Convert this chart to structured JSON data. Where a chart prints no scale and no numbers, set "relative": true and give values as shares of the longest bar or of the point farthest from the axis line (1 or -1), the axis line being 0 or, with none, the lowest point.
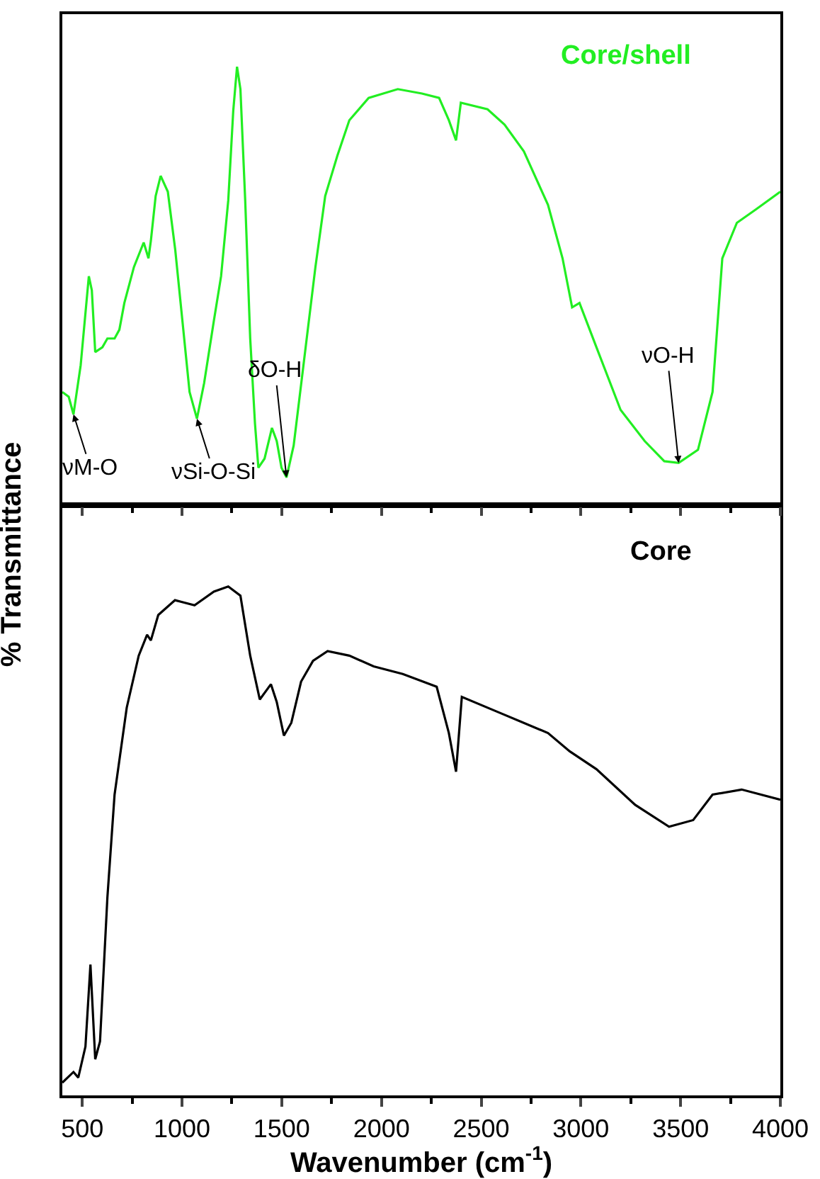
{
  "chart_data": [
    {
      "type": "line",
      "relative": true,
      "xlim": [
        400,
        4000
      ],
      "tick_labels": false,
      "ylabel": "% Transmittance",
      "xticks": [
        500,
        {
          "value": 750,
          "label": null
        },
        1000,
        {
          "value": 1250,
          "label": null
        },
        1500,
        {
          "value": 1750,
          "label": null
        },
        2000,
        {
          "value": 2250,
          "label": null
        },
        2500,
        {
          "value": 2750,
          "label": null
        },
        3000,
        {
          "value": 3250,
          "label": null
        },
        3500,
        {
          "value": 3750,
          "label": null
        },
        4000
      ],
      "series": [
        {
          "name": "Core/shell",
          "color": "#22ee22",
          "x": [
            400,
            432,
            456,
            492,
            533,
            548,
            565,
            601,
            626,
            662,
            686,
            711,
            759,
            808,
            832,
            844,
            868,
            893,
            929,
            966,
            1002,
            1038,
            1075,
            1111,
            1160,
            1196,
            1232,
            1257,
            1276,
            1293,
            1317,
            1342,
            1366,
            1383,
            1414,
            1451,
            1475,
            1499,
            1524,
            1560,
            1609,
            1669,
            1718,
            1779,
            1839,
            1936,
            2082,
            2203,
            2289,
            2338,
            2374,
            2398,
            2532,
            2617,
            2714,
            2835,
            2908,
            2956,
            2993,
            3078,
            3199,
            3320,
            3418,
            3490,
            3587,
            3660,
            3709,
            3782,
            3879,
            4000
          ],
          "values": [
            0.258,
            0.247,
            0.207,
            0.319,
            0.522,
            0.49,
            0.349,
            0.36,
            0.38,
            0.38,
            0.4,
            0.461,
            0.543,
            0.599,
            0.563,
            0.603,
            0.705,
            0.751,
            0.715,
            0.583,
            0.421,
            0.258,
            0.197,
            0.278,
            0.421,
            0.522,
            0.695,
            0.899,
            1.0,
            0.949,
            0.695,
            0.38,
            0.186,
            0.085,
            0.106,
            0.176,
            0.146,
            0.085,
            0.063,
            0.136,
            0.319,
            0.543,
            0.705,
            0.797,
            0.878,
            0.929,
            0.949,
            0.939,
            0.929,
            0.878,
            0.832,
            0.918,
            0.903,
            0.868,
            0.807,
            0.685,
            0.563,
            0.451,
            0.461,
            0.36,
            0.217,
            0.146,
            0.1,
            0.096,
            0.126,
            0.258,
            0.563,
            0.644,
            0.675,
            0.715
          ]
        }
      ],
      "annotations": [
        {
          "text": "νM-O",
          "x": 456,
          "y": 0.207
        },
        {
          "text": "νSi-O-Si",
          "x": 1075,
          "y": 0.197
        },
        {
          "text": "δO-H",
          "x": 1524,
          "y": 0.063
        },
        {
          "text": "νO-H",
          "x": 3490,
          "y": 0.096
        }
      ]
    },
    {
      "type": "line",
      "relative": true,
      "xlim": [
        400,
        4000
      ],
      "tick_labels": "x",
      "xlabel": "Wavenumber (cm$^{-1}$)",
      "xticks": [
        500,
        {
          "value": 750,
          "label": null
        },
        1000,
        {
          "value": 1250,
          "label": null
        },
        1500,
        {
          "value": 1750,
          "label": null
        },
        2000,
        {
          "value": 2250,
          "label": null
        },
        2500,
        {
          "value": 2750,
          "label": null
        },
        3000,
        {
          "value": 3250,
          "label": null
        },
        3500,
        {
          "value": 3750,
          "label": null
        },
        4000
      ],
      "series": [
        {
          "name": "Core",
          "color": "#000000",
          "x": [
            400,
            456,
            480,
            516,
            541,
            565,
            589,
            626,
            662,
            723,
            783,
            825,
            844,
            881,
            965,
            1063,
            1160,
            1232,
            1293,
            1342,
            1390,
            1446,
            1475,
            1511,
            1548,
            1597,
            1657,
            1730,
            1839,
            1961,
            2107,
            2277,
            2338,
            2374,
            2403,
            2592,
            2835,
            2944,
            3078,
            3272,
            3442,
            3563,
            3660,
            3806,
            4000
          ],
          "values": [
            0.025,
            0.046,
            0.035,
            0.096,
            0.257,
            0.071,
            0.106,
            0.389,
            0.591,
            0.762,
            0.864,
            0.905,
            0.894,
            0.944,
            0.973,
            0.963,
            0.99,
            1.0,
            0.982,
            0.864,
            0.778,
            0.808,
            0.773,
            0.707,
            0.732,
            0.813,
            0.854,
            0.873,
            0.864,
            0.843,
            0.828,
            0.803,
            0.712,
            0.636,
            0.783,
            0.752,
            0.712,
            0.676,
            0.641,
            0.571,
            0.528,
            0.541,
            0.591,
            0.601,
            0.581
          ]
        }
      ]
    }
  ]
}
